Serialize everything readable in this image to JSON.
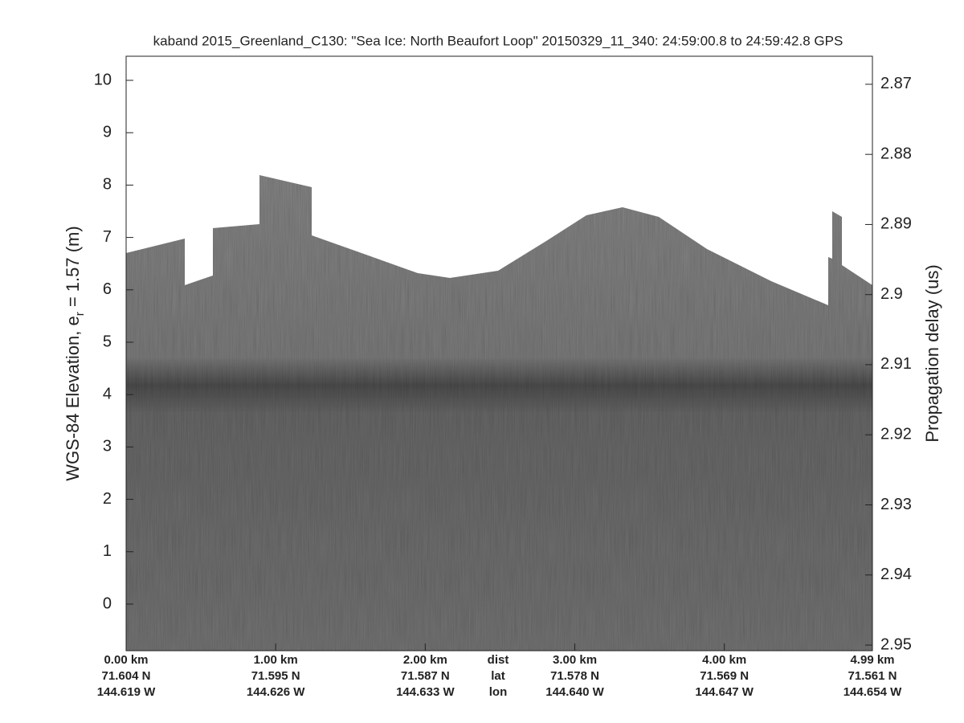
{
  "chart_data": {
    "type": "echogram",
    "title": "kaband 2015_Greenland_C130: \"Sea Ice: North Beaufort Loop\"  20150329_11_340: 24:59:00.8 to 24:59:42.8 GPS",
    "ylabel": [
      "WGS-84 Elevation, e",
      "r",
      " = 1.57 (m)"
    ],
    "y2label": "Propagation delay (us)",
    "xlim": [
      0,
      4.99
    ],
    "xticks": [
      {
        "value": 0,
        "label": "0.00 km"
      },
      {
        "value": 1,
        "label": "1.00 km"
      },
      {
        "value": 2,
        "label": "2.00 km"
      },
      {
        "value": 3,
        "label": "3.00 km"
      },
      {
        "value": 4,
        "label": "4.00 km"
      },
      {
        "value": 4.99,
        "label": "4.99 km"
      }
    ],
    "xtick_lat": [
      "71.604 N",
      "71.595 N",
      "71.587 N",
      "71.578 N",
      "71.569 N",
      "71.561 N"
    ],
    "xtick_lon": [
      "144.619 W",
      "144.626 W",
      "144.633 W",
      "144.640 W",
      "144.647 W",
      "144.654 W"
    ],
    "xtick_rows": [
      "dist",
      "lat",
      "lon"
    ],
    "ylim": [
      -0.89,
      10.46
    ],
    "yticks": [
      0,
      1,
      2,
      3,
      4,
      5,
      6,
      7,
      8,
      9,
      10
    ],
    "y2lim": [
      2.9508,
      2.866
    ],
    "y2ticks": [
      2.87,
      2.88,
      2.89,
      2.9,
      2.91,
      2.92,
      2.93,
      2.94,
      2.95
    ]
  }
}
